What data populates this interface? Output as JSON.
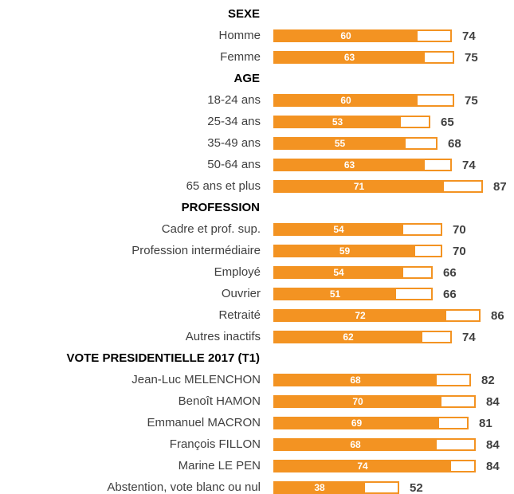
{
  "chart_data": {
    "type": "bar",
    "orientation": "horizontal",
    "groups": [
      {
        "title": "SEXE",
        "categories": [
          "Homme",
          "Femme"
        ],
        "series": [
          {
            "color": "#f39322",
            "values": [
              60,
              63
            ]
          },
          {
            "color": "#f39322",
            "values": [
              74,
              75
            ]
          }
        ]
      },
      {
        "title": "AGE",
        "categories": [
          "18-24 ans",
          "25-34 ans",
          "35-49 ans",
          "50-64 ans",
          "65 ans et plus"
        ],
        "series": [
          {
            "color": "#f39322",
            "values": [
              60,
              53,
              55,
              63,
              71
            ]
          },
          {
            "color": "#f39322",
            "values": [
              75,
              65,
              68,
              74,
              87
            ]
          }
        ]
      },
      {
        "title": "PROFESSION",
        "categories": [
          "Cadre et prof. sup.",
          "Profession intermédiaire",
          "Employé",
          "Ouvrier",
          "Retraité",
          "Autres inactifs"
        ],
        "series": [
          {
            "color": "#f39322",
            "values": [
              54,
              59,
              54,
              51,
              72,
              62
            ]
          },
          {
            "color": "#f39322",
            "values": [
              70,
              70,
              66,
              66,
              86,
              74
            ]
          }
        ]
      },
      {
        "title": "VOTE PRESIDENTIELLE 2017 (T1)",
        "categories": [
          "Jean-Luc MELENCHON",
          "Benoît HAMON",
          "Emmanuel MACRON",
          "François FILLON",
          "Marine LE PEN",
          "Abstention, vote blanc ou nul"
        ],
        "series": [
          {
            "color": "#f39322",
            "values": [
              68,
              70,
              69,
              68,
              74,
              38
            ]
          },
          {
            "color": "#f39322",
            "values": [
              82,
              84,
              81,
              84,
              84,
              52
            ]
          }
        ]
      }
    ]
  }
}
